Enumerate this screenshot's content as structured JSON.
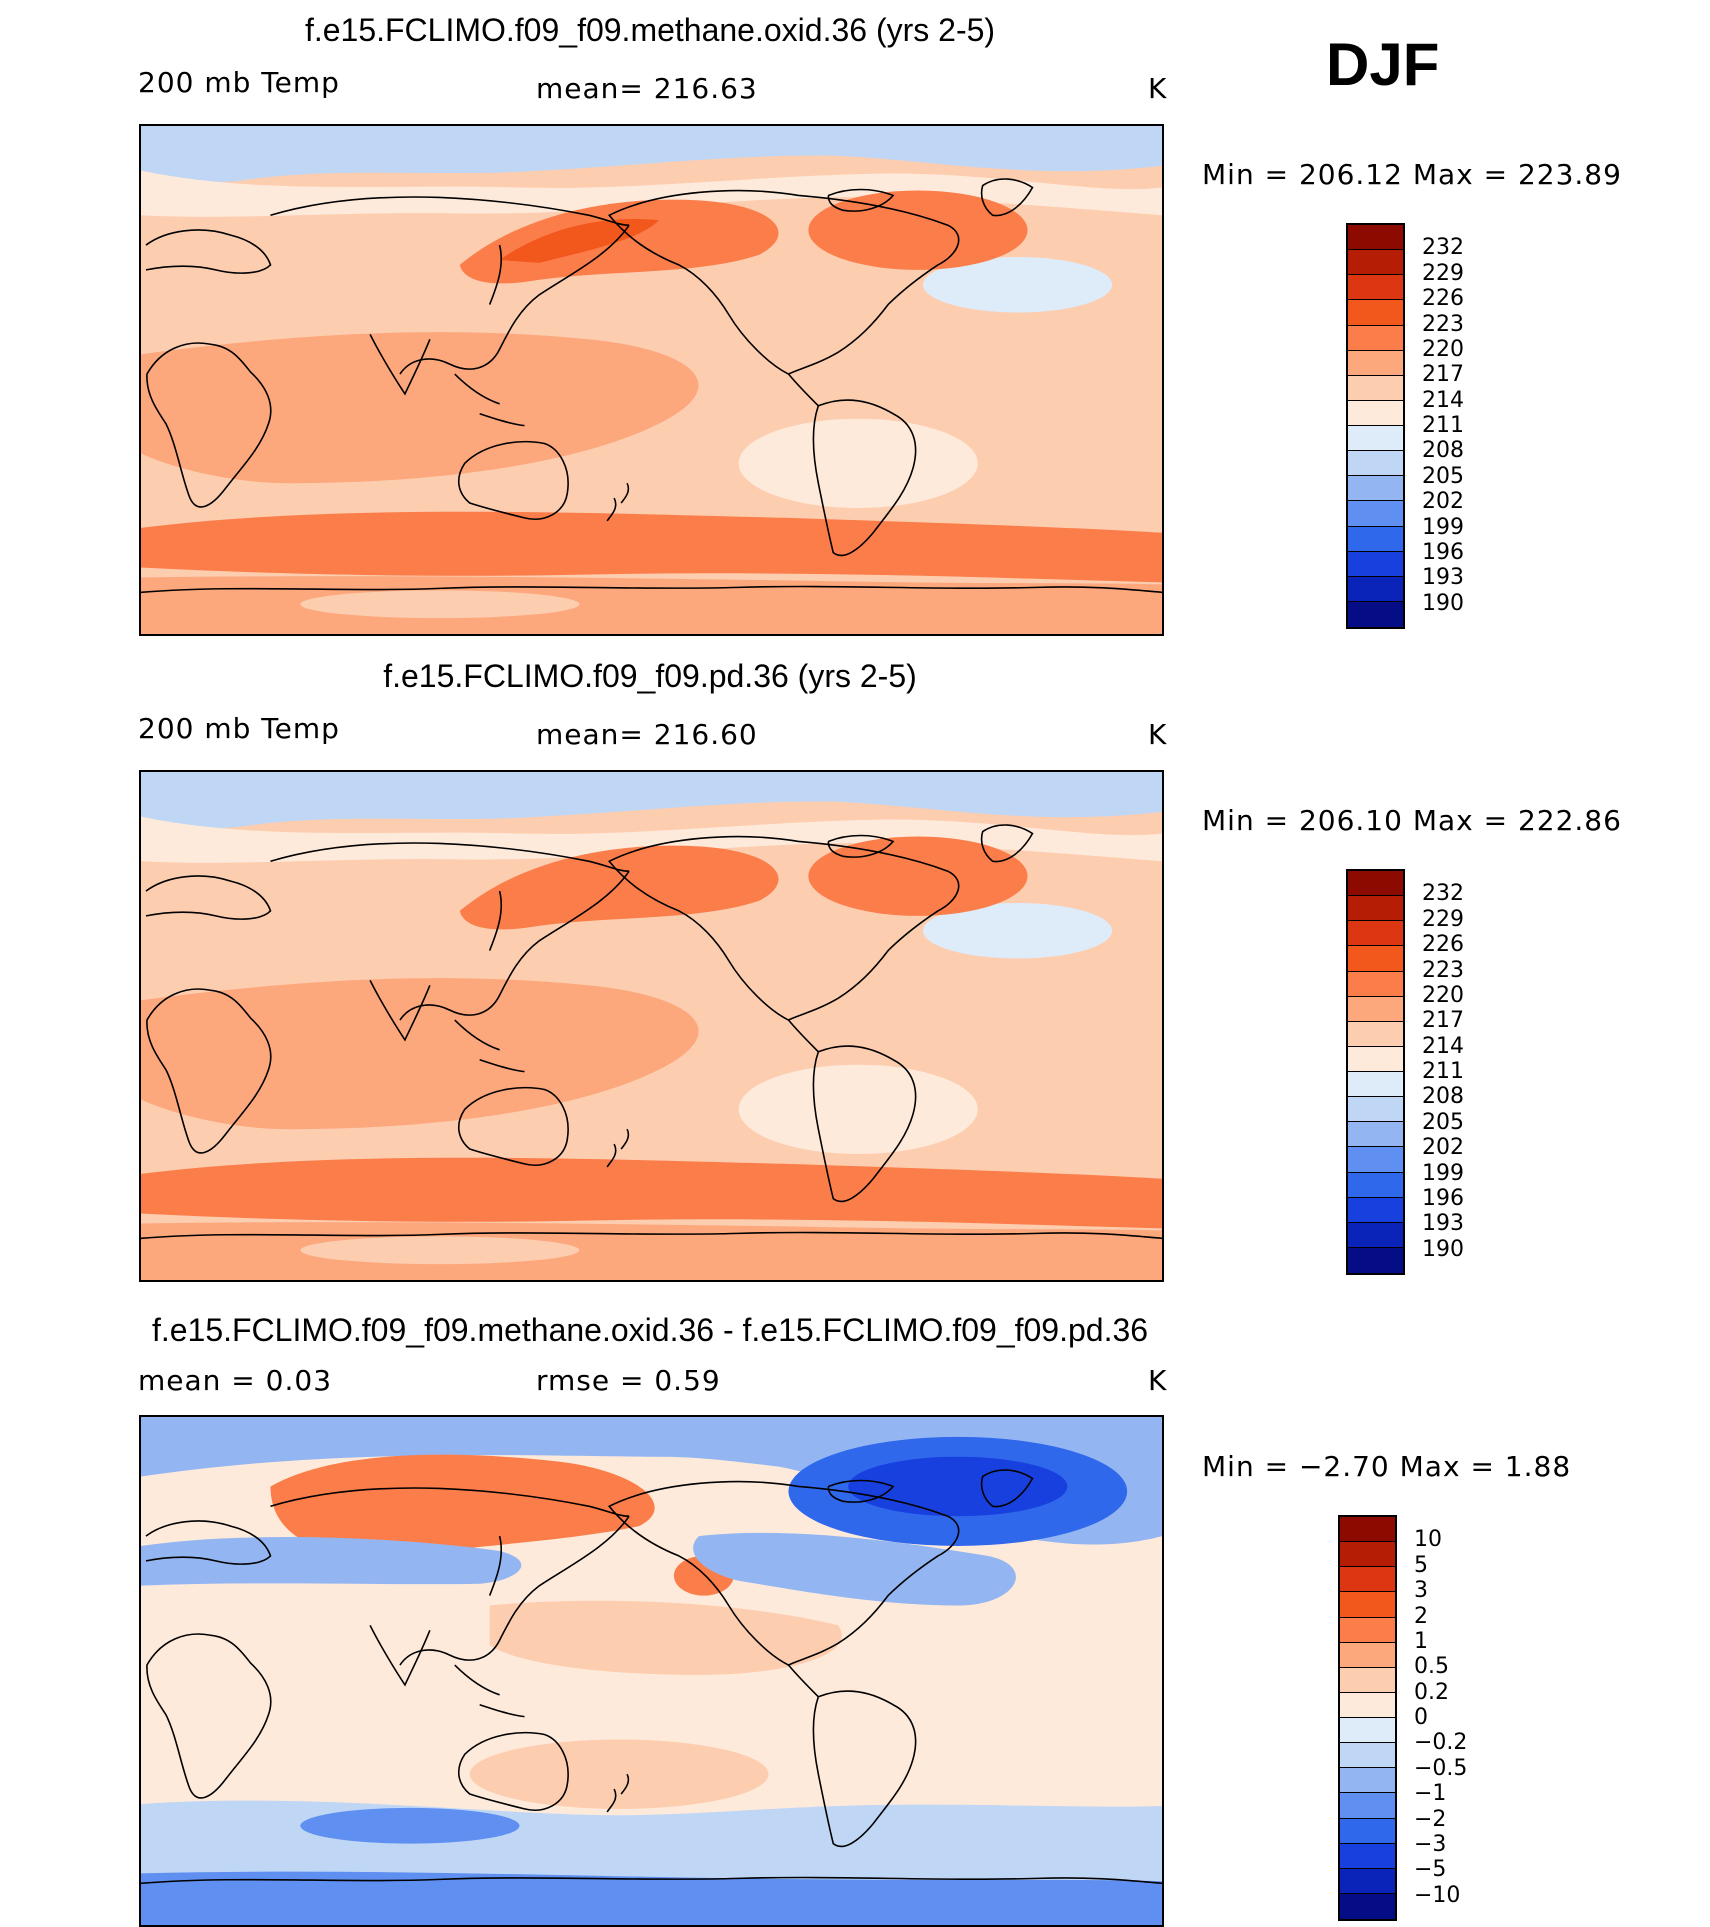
{
  "season": "DJF",
  "panels": [
    {
      "title": "f.e15.FCLIMO.f09_f09.methane.oxid.36 (yrs 2-5)",
      "left_label": "200 mb Temp",
      "center_label": "mean= 216.63",
      "units": "K",
      "minmax": "Min = 206.12 Max = 223.89",
      "map_kind": "abs1",
      "colorbar": "temp"
    },
    {
      "title": "f.e15.FCLIMO.f09_f09.pd.36 (yrs 2-5)",
      "left_label": "200 mb Temp",
      "center_label": "mean= 216.60",
      "units": "K",
      "minmax": "Min = 206.10 Max = 222.86",
      "map_kind": "abs2",
      "colorbar": "temp"
    },
    {
      "title": "f.e15.FCLIMO.f09_f09.methane.oxid.36 - f.e15.FCLIMO.f09_f09.pd.36",
      "left_label": "mean =    0.03",
      "center_label": "rmse =    0.59",
      "units": "K",
      "minmax": "Min =  −2.70 Max =    1.88",
      "map_kind": "diff",
      "colorbar": "diff"
    }
  ],
  "colorbars": {
    "temp": {
      "colors": [
        "#8c0a00",
        "#b51e04",
        "#dc3612",
        "#f2571b",
        "#fb7d4a",
        "#fca77c",
        "#fdcdb0",
        "#feeadb",
        "#deebf8",
        "#bfd6f5",
        "#93b6f2",
        "#5f8ff0",
        "#3068ec",
        "#1740df",
        "#0a23b8",
        "#040d85"
      ],
      "labels": [
        "232",
        "229",
        "226",
        "223",
        "220",
        "217",
        "214",
        "211",
        "208",
        "205",
        "202",
        "199",
        "196",
        "193",
        "190"
      ]
    },
    "diff": {
      "colors": [
        "#8c0a00",
        "#b51e04",
        "#dc3612",
        "#f2571b",
        "#fb7d4a",
        "#fca77c",
        "#fdcdb0",
        "#feeadb",
        "#deebf8",
        "#bfd6f5",
        "#93b6f2",
        "#5f8ff0",
        "#3068ec",
        "#1740df",
        "#0a23b8",
        "#040d85"
      ],
      "labels": [
        "10",
        "5",
        "3",
        "2",
        "1",
        "0.5",
        "0.2",
        "0",
        "−0.2",
        "−0.5",
        "−1",
        "−2",
        "−3",
        "−5",
        "−10"
      ]
    }
  }
}
